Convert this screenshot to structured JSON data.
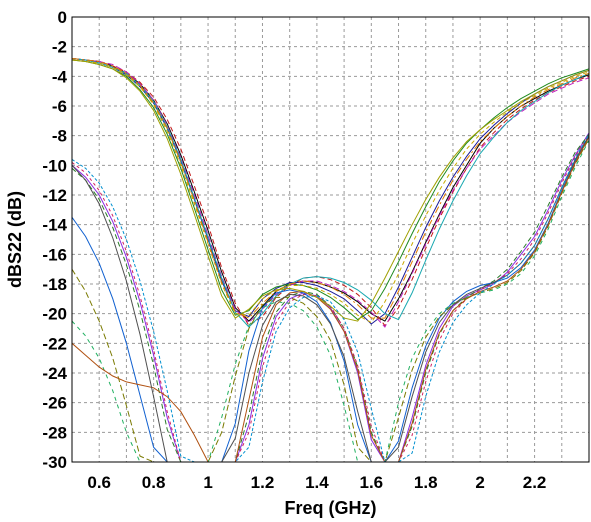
{
  "chart_data": {
    "type": "line",
    "title": "",
    "xlabel": "Freq (GHz)",
    "ylabel": "dBS22 (dB)",
    "xlim": [
      0.5,
      2.4
    ],
    "ylim": [
      -30,
      0
    ],
    "grid": true,
    "x_ticks": [
      {
        "value": 0.6,
        "label": "0.6"
      },
      {
        "value": 0.8,
        "label": "0.8"
      },
      {
        "value": 1.0,
        "label": "1"
      },
      {
        "value": 1.2,
        "label": "1.2"
      },
      {
        "value": 1.4,
        "label": "1.4"
      },
      {
        "value": 1.6,
        "label": "1.6"
      },
      {
        "value": 1.8,
        "label": "1.8"
      },
      {
        "value": 2.0,
        "label": "2"
      },
      {
        "value": 2.2,
        "label": "2.2"
      }
    ],
    "y_ticks": [
      {
        "value": 0,
        "label": "0"
      },
      {
        "value": -2,
        "label": "-2"
      },
      {
        "value": -4,
        "label": "-4"
      },
      {
        "value": -6,
        "label": "-6"
      },
      {
        "value": -8,
        "label": "-8"
      },
      {
        "value": -10,
        "label": "-10"
      },
      {
        "value": -12,
        "label": "-12"
      },
      {
        "value": -14,
        "label": "-14"
      },
      {
        "value": -16,
        "label": "-16"
      },
      {
        "value": -18,
        "label": "-18"
      },
      {
        "value": -20,
        "label": "-20"
      },
      {
        "value": -22,
        "label": "-22"
      },
      {
        "value": -24,
        "label": "-24"
      },
      {
        "value": -26,
        "label": "-26"
      },
      {
        "value": -28,
        "label": "-28"
      },
      {
        "value": -30,
        "label": "-30"
      }
    ],
    "x": [
      0.5,
      0.55,
      0.6,
      0.65,
      0.7,
      0.75,
      0.8,
      0.85,
      0.9,
      0.95,
      1.0,
      1.05,
      1.1,
      1.15,
      1.2,
      1.25,
      1.3,
      1.35,
      1.4,
      1.45,
      1.5,
      1.55,
      1.6,
      1.65,
      1.7,
      1.75,
      1.8,
      1.85,
      1.9,
      1.95,
      2.0,
      2.05,
      2.1,
      2.15,
      2.2,
      2.25,
      2.3,
      2.35,
      2.4
    ],
    "series": [
      {
        "color": "#000000",
        "dash": "",
        "values": [
          -2.8,
          -2.9,
          -3.0,
          -3.3,
          -3.8,
          -4.5,
          -5.6,
          -7.2,
          -9.3,
          -11.8,
          -14.4,
          -17.2,
          -19.6,
          -20.5,
          -19.5,
          -18.5,
          -18.0,
          -17.8,
          -17.9,
          -18.2,
          -18.6,
          -19.2,
          -20.0,
          -20.5,
          -19.0,
          -17.2,
          -15.2,
          -13.3,
          -11.5,
          -10.0,
          -8.5,
          -7.5,
          -6.7,
          -6.0,
          -5.5,
          -5.0,
          -4.6,
          -4.2,
          -3.9
        ]
      },
      {
        "color": "#1c1c9a",
        "dash": "",
        "values": [
          -2.8,
          -2.9,
          -3.1,
          -3.4,
          -3.9,
          -4.7,
          -5.8,
          -7.5,
          -9.7,
          -12.3,
          -15.0,
          -17.8,
          -19.8,
          -20.2,
          -19.0,
          -18.3,
          -17.9,
          -17.9,
          -18.1,
          -18.5,
          -19.0,
          -19.8,
          -20.7,
          -20.0,
          -18.2,
          -16.2,
          -14.2,
          -12.4,
          -10.8,
          -9.4,
          -8.2,
          -7.3,
          -6.5,
          -5.8,
          -5.2,
          -4.7,
          -4.3,
          -3.9,
          -3.6
        ]
      },
      {
        "color": "#c21818",
        "dash": "5,3",
        "values": [
          -2.8,
          -2.9,
          -3.0,
          -3.3,
          -3.7,
          -4.4,
          -5.4,
          -6.9,
          -8.9,
          -11.4,
          -14.0,
          -16.9,
          -19.3,
          -20.8,
          -20.2,
          -18.9,
          -18.1,
          -17.6,
          -17.5,
          -17.7,
          -18.1,
          -18.7,
          -19.6,
          -20.8,
          -19.6,
          -17.7,
          -15.6,
          -13.6,
          -11.8,
          -10.2,
          -8.8,
          -7.8,
          -6.9,
          -6.2,
          -5.6,
          -5.1,
          -4.7,
          -4.3,
          -4.0
        ]
      },
      {
        "color": "#1e8a1e",
        "dash": "",
        "values": [
          -2.9,
          -3.0,
          -3.2,
          -3.5,
          -4.0,
          -4.9,
          -6.1,
          -7.9,
          -10.2,
          -12.9,
          -15.7,
          -18.4,
          -20.1,
          -19.8,
          -18.7,
          -18.2,
          -18.0,
          -18.1,
          -18.4,
          -18.9,
          -19.6,
          -20.4,
          -19.8,
          -18.3,
          -16.5,
          -14.6,
          -12.8,
          -11.1,
          -9.7,
          -8.5,
          -7.6,
          -6.8,
          -6.1,
          -5.5,
          -5.0,
          -4.5,
          -4.1,
          -3.8,
          -3.5
        ]
      },
      {
        "color": "#c020c0",
        "dash": "6,3",
        "values": [
          -2.8,
          -2.9,
          -3.0,
          -3.2,
          -3.7,
          -4.5,
          -5.6,
          -7.3,
          -9.5,
          -12.0,
          -14.7,
          -17.5,
          -19.7,
          -20.6,
          -19.7,
          -18.7,
          -18.1,
          -17.8,
          -17.8,
          -18.1,
          -18.5,
          -19.1,
          -19.9,
          -20.9,
          -19.2,
          -17.3,
          -15.3,
          -13.4,
          -11.7,
          -10.2,
          -8.9,
          -8.0,
          -7.1,
          -6.4,
          -5.8,
          -5.2,
          -4.8,
          -4.4,
          -4.1
        ]
      },
      {
        "color": "#18a8b0",
        "dash": "",
        "values": [
          -2.8,
          -2.9,
          -3.1,
          -3.4,
          -3.8,
          -4.6,
          -5.7,
          -7.4,
          -9.6,
          -12.2,
          -14.9,
          -17.6,
          -19.9,
          -20.9,
          -20.0,
          -18.8,
          -18.0,
          -17.6,
          -17.5,
          -17.6,
          -17.9,
          -18.4,
          -19.1,
          -20.0,
          -20.4,
          -18.6,
          -16.4,
          -14.3,
          -12.4,
          -10.7,
          -9.2,
          -8.1,
          -7.1,
          -6.3,
          -5.7,
          -5.1,
          -4.6,
          -4.2,
          -3.8
        ]
      },
      {
        "color": "#c8a800",
        "dash": "4,3",
        "values": [
          -2.9,
          -3.0,
          -3.1,
          -3.4,
          -3.9,
          -4.7,
          -5.9,
          -7.7,
          -10.0,
          -12.6,
          -15.3,
          -18.0,
          -20.0,
          -20.1,
          -19.0,
          -18.4,
          -18.1,
          -18.1,
          -18.3,
          -18.7,
          -19.3,
          -20.1,
          -20.6,
          -19.2,
          -17.3,
          -15.3,
          -13.4,
          -11.7,
          -10.2,
          -8.9,
          -7.9,
          -7.1,
          -6.4,
          -5.8,
          -5.3,
          -4.8,
          -4.4,
          -4.0,
          -3.7
        ]
      },
      {
        "color": "#e07a00",
        "dash": "7,3,2,3",
        "values": [
          -2.8,
          -2.9,
          -3.0,
          -3.3,
          -3.8,
          -4.6,
          -5.8,
          -7.5,
          -9.8,
          -12.4,
          -15.2,
          -17.9,
          -19.9,
          -20.3,
          -19.3,
          -18.5,
          -18.0,
          -17.8,
          -17.9,
          -18.2,
          -18.7,
          -19.4,
          -20.3,
          -20.3,
          -18.5,
          -16.5,
          -14.5,
          -12.7,
          -11.0,
          -9.6,
          -8.4,
          -7.5,
          -6.7,
          -6.0,
          -5.4,
          -4.9,
          -4.5,
          -4.1,
          -3.8
        ]
      },
      {
        "color": "#8a2be2",
        "dash": "",
        "values": [
          -10.0,
          -10.8,
          -12.0,
          -13.8,
          -16.2,
          -19.2,
          -22.8,
          -27.0,
          -30.0,
          -30.0,
          -30.0,
          -30.0,
          -30.0,
          -27.5,
          -23.0,
          -20.2,
          -19.0,
          -18.6,
          -18.8,
          -19.6,
          -21.2,
          -24.0,
          -28.5,
          -30.0,
          -30.0,
          -27.0,
          -23.5,
          -21.0,
          -19.5,
          -18.8,
          -18.4,
          -18.0,
          -17.2,
          -16.0,
          -14.8,
          -13.0,
          -11.0,
          -9.3,
          -7.8
        ]
      },
      {
        "color": "#2a7a2a",
        "dash": "5,3",
        "values": [
          -10.2,
          -11.0,
          -12.3,
          -14.2,
          -16.7,
          -19.8,
          -23.5,
          -27.8,
          -30.0,
          -30.0,
          -30.0,
          -30.0,
          -30.0,
          -26.8,
          -22.4,
          -19.9,
          -18.8,
          -18.5,
          -18.7,
          -19.5,
          -21.0,
          -23.6,
          -28.0,
          -30.0,
          -30.0,
          -27.6,
          -24.0,
          -21.4,
          -19.8,
          -18.9,
          -18.3,
          -17.8,
          -17.0,
          -15.8,
          -14.5,
          -12.7,
          -10.8,
          -9.1,
          -7.9
        ]
      },
      {
        "color": "#d02060",
        "dash": "3,3",
        "values": [
          -9.8,
          -10.5,
          -11.7,
          -13.4,
          -15.8,
          -18.8,
          -22.4,
          -26.6,
          -30.0,
          -30.0,
          -30.0,
          -30.0,
          -30.0,
          -28.0,
          -23.6,
          -20.6,
          -19.2,
          -18.7,
          -18.8,
          -19.5,
          -21.0,
          -23.5,
          -27.6,
          -30.0,
          -30.0,
          -28.2,
          -24.6,
          -21.8,
          -20.0,
          -19.0,
          -18.4,
          -17.9,
          -17.3,
          -16.3,
          -15.0,
          -13.2,
          -11.2,
          -9.4,
          -7.9
        ]
      },
      {
        "color": "#1060d0",
        "dash": "",
        "values": [
          -13.5,
          -14.8,
          -16.6,
          -19.0,
          -22.0,
          -25.5,
          -29.0,
          -30.0,
          -30.0,
          -30.0,
          -30.0,
          -30.0,
          -27.4,
          -22.5,
          -19.6,
          -18.6,
          -18.4,
          -18.6,
          -19.2,
          -20.6,
          -23.2,
          -27.5,
          -30.0,
          -30.0,
          -28.6,
          -25.0,
          -22.2,
          -20.3,
          -19.2,
          -18.5,
          -18.1,
          -17.9,
          -17.6,
          -16.9,
          -15.7,
          -13.9,
          -11.7,
          -9.7,
          -8.0
        ]
      },
      {
        "color": "#7a7a00",
        "dash": "6,3",
        "values": [
          -17.0,
          -18.5,
          -20.5,
          -23.0,
          -26.2,
          -29.6,
          -30.0,
          -30.0,
          -30.0,
          -30.0,
          -30.0,
          -28.0,
          -24.2,
          -21.0,
          -19.4,
          -18.9,
          -18.9,
          -19.3,
          -20.2,
          -21.8,
          -24.8,
          -29.0,
          -30.0,
          -30.0,
          -27.0,
          -23.8,
          -21.6,
          -20.2,
          -19.4,
          -18.9,
          -18.6,
          -18.3,
          -17.9,
          -17.1,
          -15.9,
          -14.1,
          -11.9,
          -9.9,
          -8.2
        ]
      },
      {
        "color": "#20b060",
        "dash": "4,4",
        "values": [
          -20.5,
          -21.5,
          -23.0,
          -25.2,
          -28.0,
          -30.0,
          -30.0,
          -30.0,
          -30.0,
          -30.0,
          -30.0,
          -27.0,
          -23.4,
          -20.8,
          -19.6,
          -19.2,
          -19.3,
          -19.8,
          -20.9,
          -22.8,
          -26.2,
          -30.0,
          -30.0,
          -30.0,
          -26.0,
          -23.0,
          -21.2,
          -20.0,
          -19.3,
          -18.9,
          -18.6,
          -18.4,
          -18.0,
          -17.3,
          -16.1,
          -14.3,
          -12.1,
          -10.1,
          -8.3
        ]
      },
      {
        "color": "#b05010",
        "dash": "",
        "values": [
          -22.0,
          -22.8,
          -23.6,
          -24.2,
          -24.6,
          -24.8,
          -25.0,
          -25.6,
          -26.6,
          -28.2,
          -30.0,
          -30.0,
          -30.0,
          -25.8,
          -21.6,
          -19.4,
          -18.6,
          -18.5,
          -18.9,
          -19.7,
          -21.2,
          -23.8,
          -28.2,
          -30.0,
          -30.0,
          -27.4,
          -23.8,
          -21.3,
          -19.8,
          -19.0,
          -18.5,
          -18.2,
          -17.8,
          -17.0,
          -15.8,
          -14.0,
          -11.8,
          -9.8,
          -8.1
        ]
      },
      {
        "color": "#505050",
        "dash": "",
        "values": [
          -10.0,
          -11.0,
          -12.6,
          -14.9,
          -17.8,
          -21.4,
          -25.6,
          -30.0,
          -30.0,
          -30.0,
          -30.0,
          -30.0,
          -28.4,
          -24.0,
          -20.8,
          -19.2,
          -18.7,
          -18.8,
          -19.4,
          -20.7,
          -22.9,
          -26.6,
          -30.0,
          -30.0,
          -29.0,
          -25.6,
          -22.6,
          -20.6,
          -19.4,
          -18.7,
          -18.3,
          -17.9,
          -17.4,
          -16.6,
          -15.4,
          -13.6,
          -11.5,
          -9.6,
          -8.0
        ]
      },
      {
        "color": "#0090d0",
        "dash": "3,2",
        "values": [
          -9.6,
          -10.2,
          -11.2,
          -12.8,
          -15.0,
          -17.8,
          -21.2,
          -25.2,
          -29.6,
          -30.0,
          -30.0,
          -30.0,
          -30.0,
          -29.0,
          -24.6,
          -21.2,
          -19.6,
          -18.9,
          -18.8,
          -19.2,
          -20.4,
          -22.6,
          -26.4,
          -30.0,
          -30.0,
          -29.4,
          -25.6,
          -22.6,
          -20.6,
          -19.4,
          -18.6,
          -18.0,
          -17.4,
          -16.6,
          -15.4,
          -13.6,
          -11.5,
          -9.5,
          -7.9
        ]
      },
      {
        "color": "#a0a000",
        "dash": "",
        "values": [
          -2.9,
          -3.0,
          -3.2,
          -3.5,
          -4.1,
          -5.0,
          -6.3,
          -8.2,
          -10.6,
          -13.3,
          -16.1,
          -18.8,
          -20.3,
          -19.7,
          -18.8,
          -18.4,
          -18.3,
          -18.5,
          -18.9,
          -19.5,
          -20.3,
          -20.5,
          -19.3,
          -17.6,
          -15.8,
          -14.0,
          -12.3,
          -10.8,
          -9.5,
          -8.4,
          -7.6,
          -6.9,
          -6.3,
          -5.7,
          -5.2,
          -4.7,
          -4.3,
          -3.9,
          -3.6
        ]
      }
    ]
  }
}
